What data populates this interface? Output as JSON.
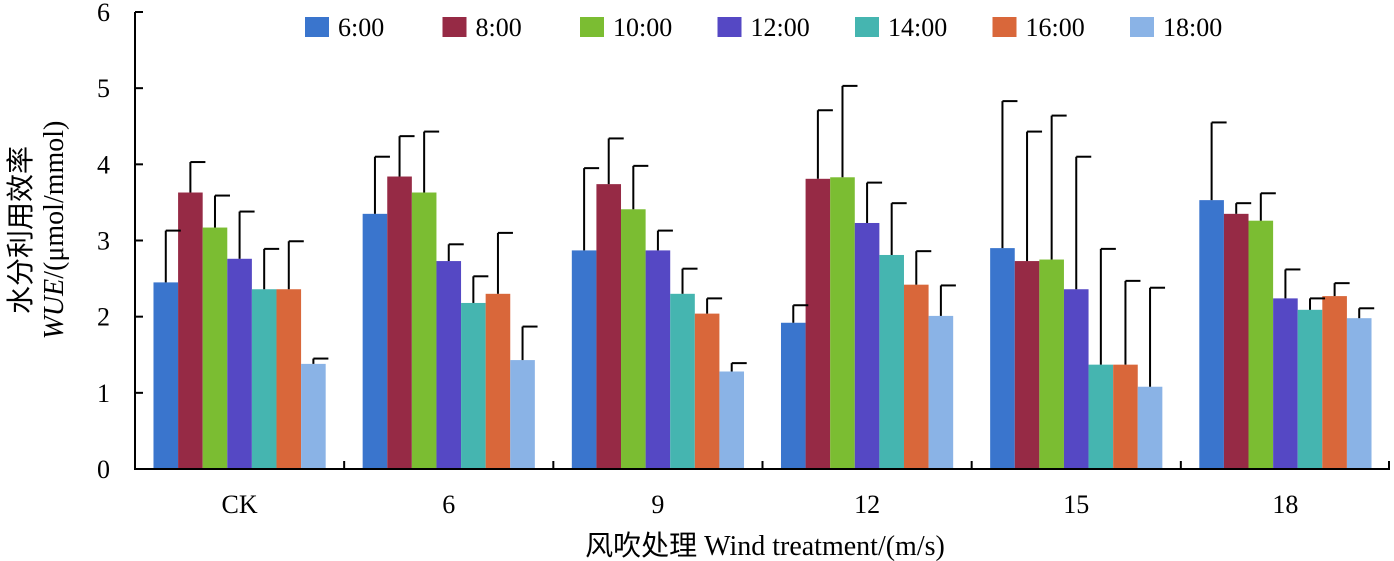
{
  "chart_data": {
    "type": "bar",
    "title": "",
    "xlabel": "风吹处理 Wind treatment/(m/s)",
    "ylabel_cn": "水分利用效率",
    "ylabel_symbol": "WUE",
    "ylabel_unit": "/(μmol/mmol)",
    "categories": [
      "CK",
      "6",
      "9",
      "12",
      "15",
      "18"
    ],
    "ylim": [
      0,
      6
    ],
    "yticks": [
      "0",
      "1",
      "2",
      "3",
      "4",
      "5",
      "6"
    ],
    "grid": false,
    "legend_position": "top",
    "series": [
      {
        "name": "6:00",
        "color": "#3a75cd",
        "values": [
          2.45,
          3.35,
          2.87,
          1.92,
          2.9,
          3.53
        ],
        "errors": [
          0.68,
          0.75,
          1.08,
          0.23,
          1.93,
          1.02
        ]
      },
      {
        "name": "8:00",
        "color": "#962a45",
        "values": [
          3.63,
          3.84,
          3.74,
          3.81,
          2.73,
          3.35
        ],
        "errors": [
          0.4,
          0.53,
          0.6,
          0.9,
          1.7,
          0.14
        ]
      },
      {
        "name": "10:00",
        "color": "#7bbd32",
        "values": [
          3.17,
          3.63,
          3.41,
          3.83,
          2.75,
          3.26
        ],
        "errors": [
          0.42,
          0.8,
          0.57,
          1.2,
          1.89,
          0.36
        ]
      },
      {
        "name": "12:00",
        "color": "#5548c4",
        "values": [
          2.76,
          2.73,
          2.87,
          3.23,
          2.36,
          2.24
        ],
        "errors": [
          0.62,
          0.22,
          0.26,
          0.53,
          1.74,
          0.38
        ]
      },
      {
        "name": "14:00",
        "color": "#45b5b0",
        "values": [
          2.36,
          2.18,
          2.3,
          2.81,
          1.37,
          2.09
        ],
        "errors": [
          0.53,
          0.35,
          0.33,
          0.68,
          1.52,
          0.15
        ]
      },
      {
        "name": "16:00",
        "color": "#d9673a",
        "values": [
          2.36,
          2.3,
          2.04,
          2.42,
          1.37,
          2.27
        ],
        "errors": [
          0.63,
          0.8,
          0.2,
          0.44,
          1.1,
          0.17
        ]
      },
      {
        "name": "18:00",
        "color": "#8ab3e6",
        "values": [
          1.38,
          1.43,
          1.28,
          2.01,
          1.08,
          1.98
        ],
        "errors": [
          0.07,
          0.44,
          0.11,
          0.4,
          1.3,
          0.13
        ]
      }
    ]
  }
}
